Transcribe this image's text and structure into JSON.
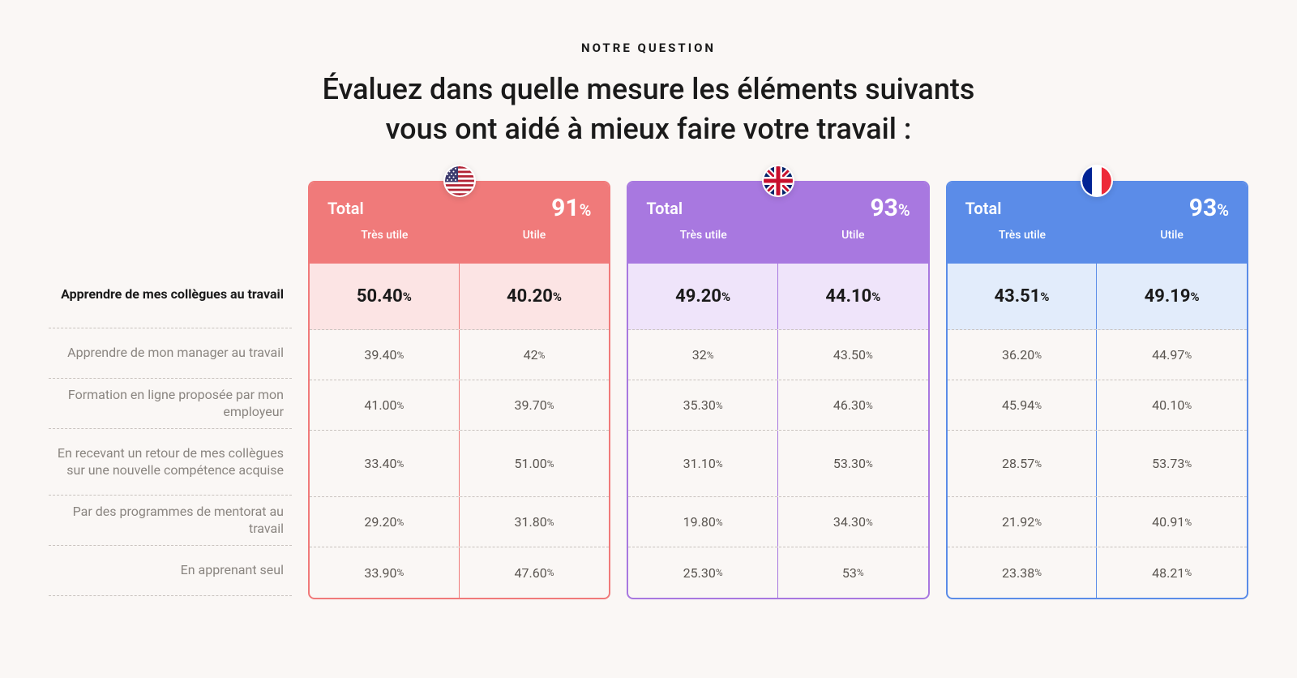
{
  "header": {
    "kicker": "NOTRE QUESTION",
    "title_line1": "Évaluez dans quelle mesure les éléments suivants",
    "title_line2": "vous ont aidé à mieux faire votre travail :"
  },
  "subheaders": {
    "total": "Total",
    "very_useful": "Très utile",
    "useful": "Utile"
  },
  "row_labels": [
    "Apprendre de mes collègues au travail",
    "Apprendre de mon manager au travail",
    "Formation en ligne proposée par mon employeur",
    "En recevant un retour de mes collègues sur une nouvelle compétence acquise",
    "Par des  programmes de mentorat au travail",
    "En apprenant seul"
  ],
  "row_highlight_index": 0,
  "row_tall_index": 3,
  "countries": [
    {
      "id": "us",
      "flag": "us",
      "total_pct": "91",
      "col1": [
        "50.40",
        "39.40",
        "41.00",
        "33.40",
        "29.20",
        "33.90"
      ],
      "col2": [
        "40.20",
        "42",
        "39.70",
        "51.00",
        "31.80",
        "47.60"
      ]
    },
    {
      "id": "uk",
      "flag": "uk",
      "total_pct": "93",
      "col1": [
        "49.20",
        "32",
        "35.30",
        "31.10",
        "19.80",
        "25.30"
      ],
      "col2": [
        "44.10",
        "43.50",
        "46.30",
        "53.30",
        "34.30",
        "53"
      ]
    },
    {
      "id": "fr",
      "flag": "fr",
      "total_pct": "93",
      "col1": [
        "43.51",
        "36.20",
        "45.94",
        "28.57",
        "21.92",
        "23.38"
      ],
      "col2": [
        "49.19",
        "44.97",
        "40.10",
        "53.73",
        "40.91",
        "48.21"
      ]
    }
  ],
  "styles": {
    "background": "#faf7f5",
    "kicker_color": "#1a1a1a",
    "title_color": "#1a1a1a",
    "label_muted_color": "#8a8580",
    "label_bold_color": "#1a1a1a",
    "divider_color": "#c9c3bf",
    "us": {
      "accent": "#f07a7a",
      "highlight_bg": "#fce4e4"
    },
    "uk": {
      "accent": "#a878e0",
      "highlight_bg": "#efe4fa"
    },
    "fr": {
      "accent": "#5b8ce8",
      "highlight_bg": "#e2ecfb"
    },
    "title_fontsize": 36,
    "kicker_fontsize": 15,
    "total_pct_fontsize": 30,
    "highlight_cell_fontsize": 22,
    "normal_cell_fontsize": 16
  }
}
